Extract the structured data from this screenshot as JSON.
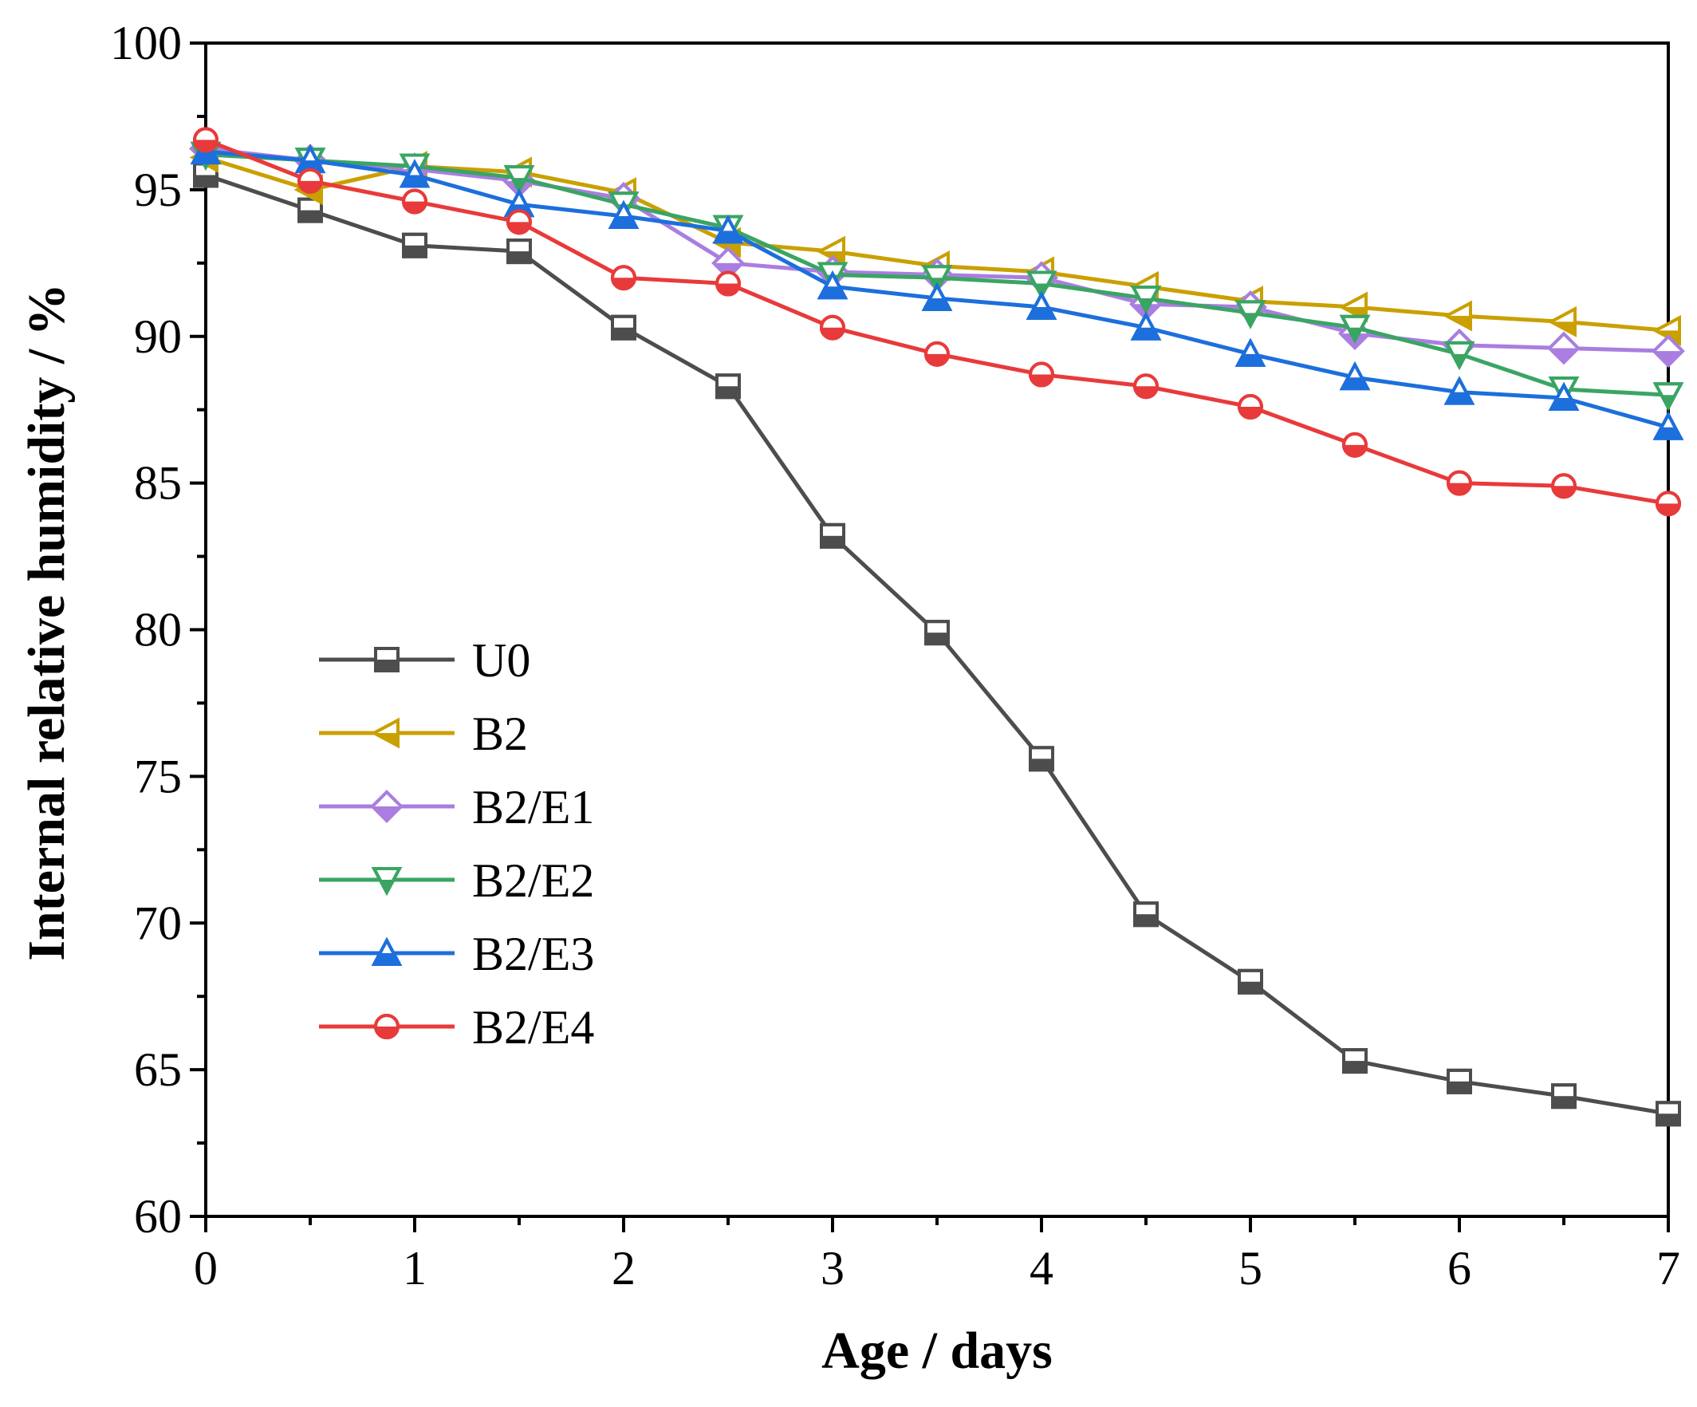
{
  "chart_data": {
    "type": "line",
    "title": "",
    "xlabel": "Age / days",
    "ylabel": "Internal relative humidity / %",
    "xlim": [
      0,
      7
    ],
    "ylim": [
      60,
      100
    ],
    "x_ticks": [
      "0",
      "1",
      "2",
      "3",
      "4",
      "5",
      "6",
      "7"
    ],
    "y_ticks": [
      "60",
      "65",
      "70",
      "75",
      "80",
      "85",
      "90",
      "95",
      "100"
    ],
    "grid": false,
    "legend_position": "center-left",
    "x": [
      0,
      0.5,
      1,
      1.5,
      2,
      2.5,
      3,
      3.5,
      4,
      4.5,
      5,
      5.5,
      6,
      6.5,
      7
    ],
    "series": [
      {
        "name": "U0",
        "color": "#4d4d4d",
        "marker": "square",
        "values": [
          95.5,
          94.3,
          93.1,
          92.9,
          90.3,
          88.3,
          83.2,
          79.9,
          75.6,
          70.3,
          68.0,
          65.3,
          64.6,
          64.1,
          63.5
        ]
      },
      {
        "name": "B2",
        "color": "#c9a000",
        "marker": "triangle-left",
        "values": [
          96.1,
          95.0,
          95.8,
          95.6,
          94.9,
          93.2,
          92.9,
          92.4,
          92.2,
          91.7,
          91.2,
          91.0,
          90.7,
          90.5,
          90.2
        ]
      },
      {
        "name": "B2/E1",
        "color": "#a97ee0",
        "marker": "diamond",
        "values": [
          96.4,
          96.0,
          95.7,
          95.3,
          94.7,
          92.5,
          92.2,
          92.1,
          92.0,
          91.1,
          91.0,
          90.1,
          89.7,
          89.6,
          89.5
        ]
      },
      {
        "name": "B2/E2",
        "color": "#3aa563",
        "marker": "triangle-down",
        "values": [
          96.2,
          96.0,
          95.8,
          95.4,
          94.5,
          93.7,
          92.1,
          92.0,
          91.8,
          91.3,
          90.8,
          90.3,
          89.4,
          88.2,
          88.0
        ]
      },
      {
        "name": "B2/E3",
        "color": "#1c6fdc",
        "marker": "triangle-up",
        "values": [
          96.3,
          96.0,
          95.5,
          94.5,
          94.1,
          93.6,
          91.7,
          91.3,
          91.0,
          90.3,
          89.4,
          88.6,
          88.1,
          87.9,
          86.9
        ]
      },
      {
        "name": "B2/E4",
        "color": "#e83a3a",
        "marker": "circle",
        "values": [
          96.7,
          95.3,
          94.6,
          93.9,
          92.0,
          91.8,
          90.3,
          89.4,
          88.7,
          88.3,
          87.6,
          86.3,
          85.0,
          84.9,
          84.3
        ]
      }
    ]
  }
}
